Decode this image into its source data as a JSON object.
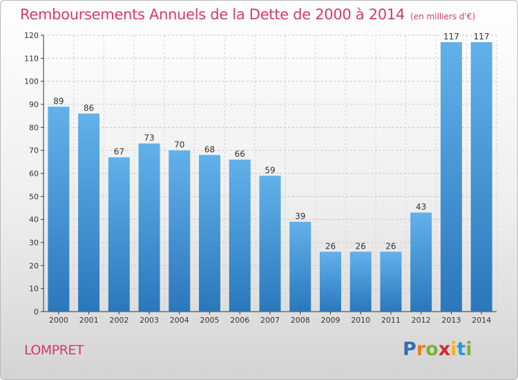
{
  "chart_data": {
    "type": "bar",
    "title": "Remboursements Annuels de la Dette de 2000 à 2014",
    "unit_label": "(en milliers d'€)",
    "categories": [
      "2000",
      "2001",
      "2002",
      "2003",
      "2004",
      "2005",
      "2006",
      "2007",
      "2008",
      "2009",
      "2010",
      "2011",
      "2012",
      "2013",
      "2014"
    ],
    "values": [
      89,
      86,
      67,
      73,
      70,
      68,
      66,
      59,
      39,
      26,
      26,
      26,
      43,
      117,
      117
    ],
    "ylim": [
      0,
      120
    ],
    "yticks": [
      0,
      10,
      20,
      30,
      40,
      50,
      60,
      70,
      80,
      90,
      100,
      110,
      120
    ],
    "grid": true,
    "bar_color_light": "#5faee8",
    "bar_color_dark": "#2a78bc"
  },
  "commune": "LOMPRET",
  "logo": {
    "letters": [
      "P",
      "r",
      "o",
      "x",
      "i",
      "t",
      "i"
    ],
    "colors": [
      "#2f6fb6",
      "#f07d1a",
      "#7bb232",
      "#d8262f",
      "#f2b31a",
      "#2a9ad6",
      "#7bb232"
    ]
  },
  "colors": {
    "title": "#d23a6e",
    "axis": "#333333"
  }
}
